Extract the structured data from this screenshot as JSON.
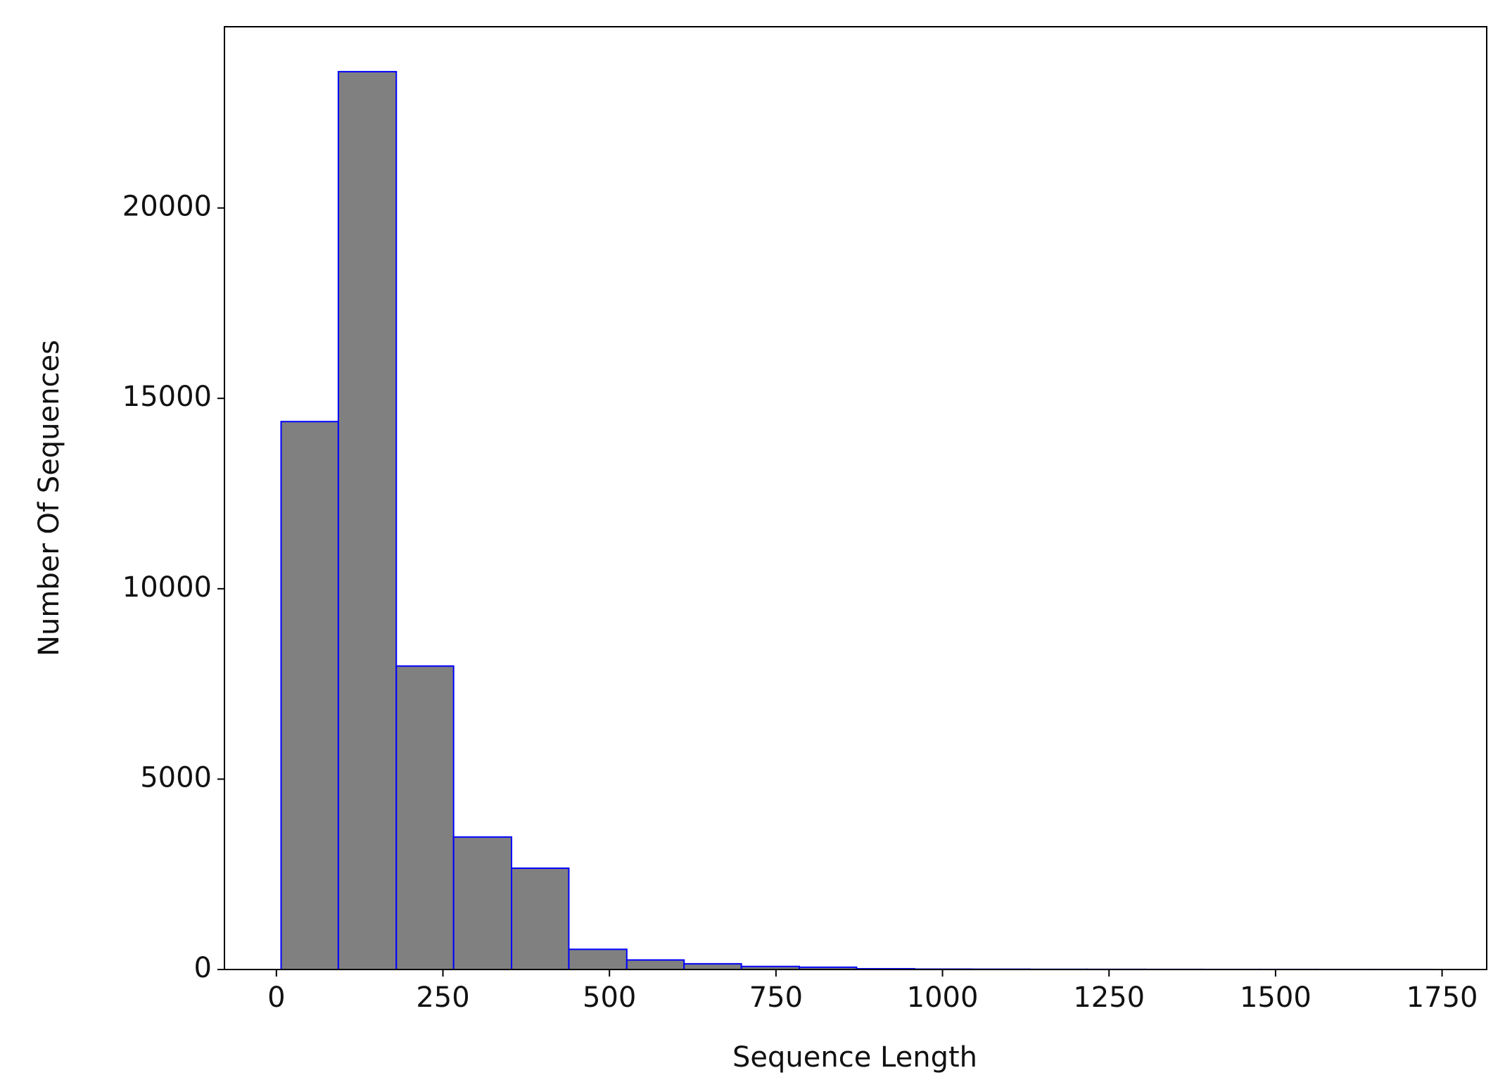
{
  "chart_data": {
    "type": "histogram",
    "xlabel": "Sequence Length",
    "ylabel": "Number Of Sequences",
    "bins": [
      7,
      93,
      180,
      266,
      353,
      439,
      526,
      612,
      698,
      785,
      871,
      958,
      1044,
      1131,
      1217,
      1304,
      1390,
      1476,
      1563,
      1649,
      1736
    ],
    "values": [
      14390,
      23580,
      7970,
      3480,
      2660,
      530,
      250,
      150,
      80,
      60,
      20,
      10,
      8,
      5,
      4,
      3,
      2,
      2,
      1,
      1
    ],
    "color": "#808080",
    "edgecolor": "#0000ff",
    "xlim": [
      -78,
      1817
    ],
    "ylim": [
      0,
      24760
    ],
    "xticks": [
      0,
      250,
      500,
      750,
      1000,
      1250,
      1500,
      1750
    ],
    "yticks": [
      0,
      5000,
      10000,
      15000,
      20000
    ]
  }
}
